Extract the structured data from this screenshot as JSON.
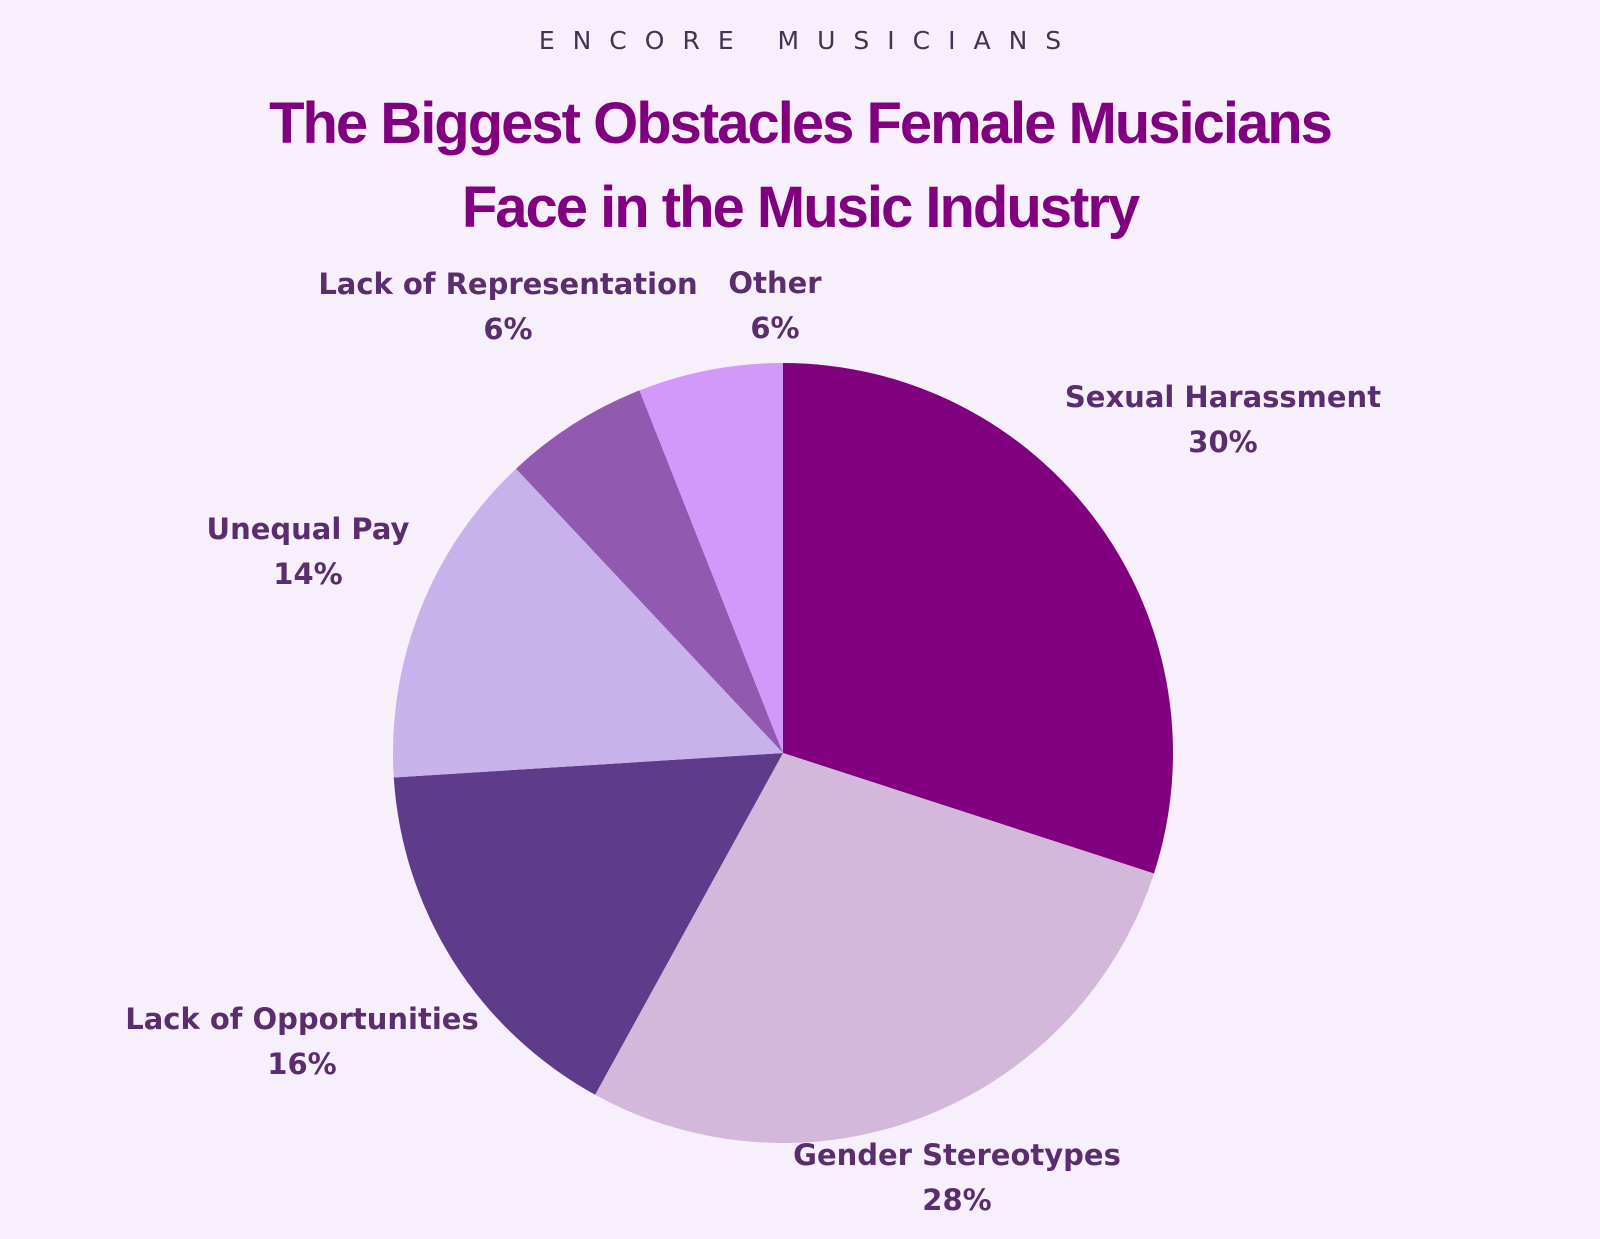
{
  "brand": "ENCORE MUSICIANS",
  "title_line1": "The Biggest Obstacles Female Musicians",
  "title_line2": "Face in the Music Industry",
  "chart_data": {
    "type": "pie",
    "title": "The Biggest Obstacles Female Musicians Face in the Music Industry",
    "start": "12 o'clock",
    "direction": "clockwise",
    "slices": [
      {
        "label": "Sexual Harassment",
        "value": 30,
        "value_label": "30%",
        "color": "#800080"
      },
      {
        "label": "Gender Stereotypes",
        "value": 28,
        "value_label": "28%",
        "color": "#d4b8dc"
      },
      {
        "label": "Lack of Opportunities",
        "value": 16,
        "value_label": "16%",
        "color": "#5e3c89"
      },
      {
        "label": "Unequal Pay",
        "value": 14,
        "value_label": "14%",
        "color": "#c7b2ec"
      },
      {
        "label": "Lack of Representation",
        "value": 6,
        "value_label": "6%",
        "color": "#9259b1"
      },
      {
        "label": "Other",
        "value": 6,
        "value_label": "6%",
        "color": "#d299fb"
      }
    ]
  }
}
